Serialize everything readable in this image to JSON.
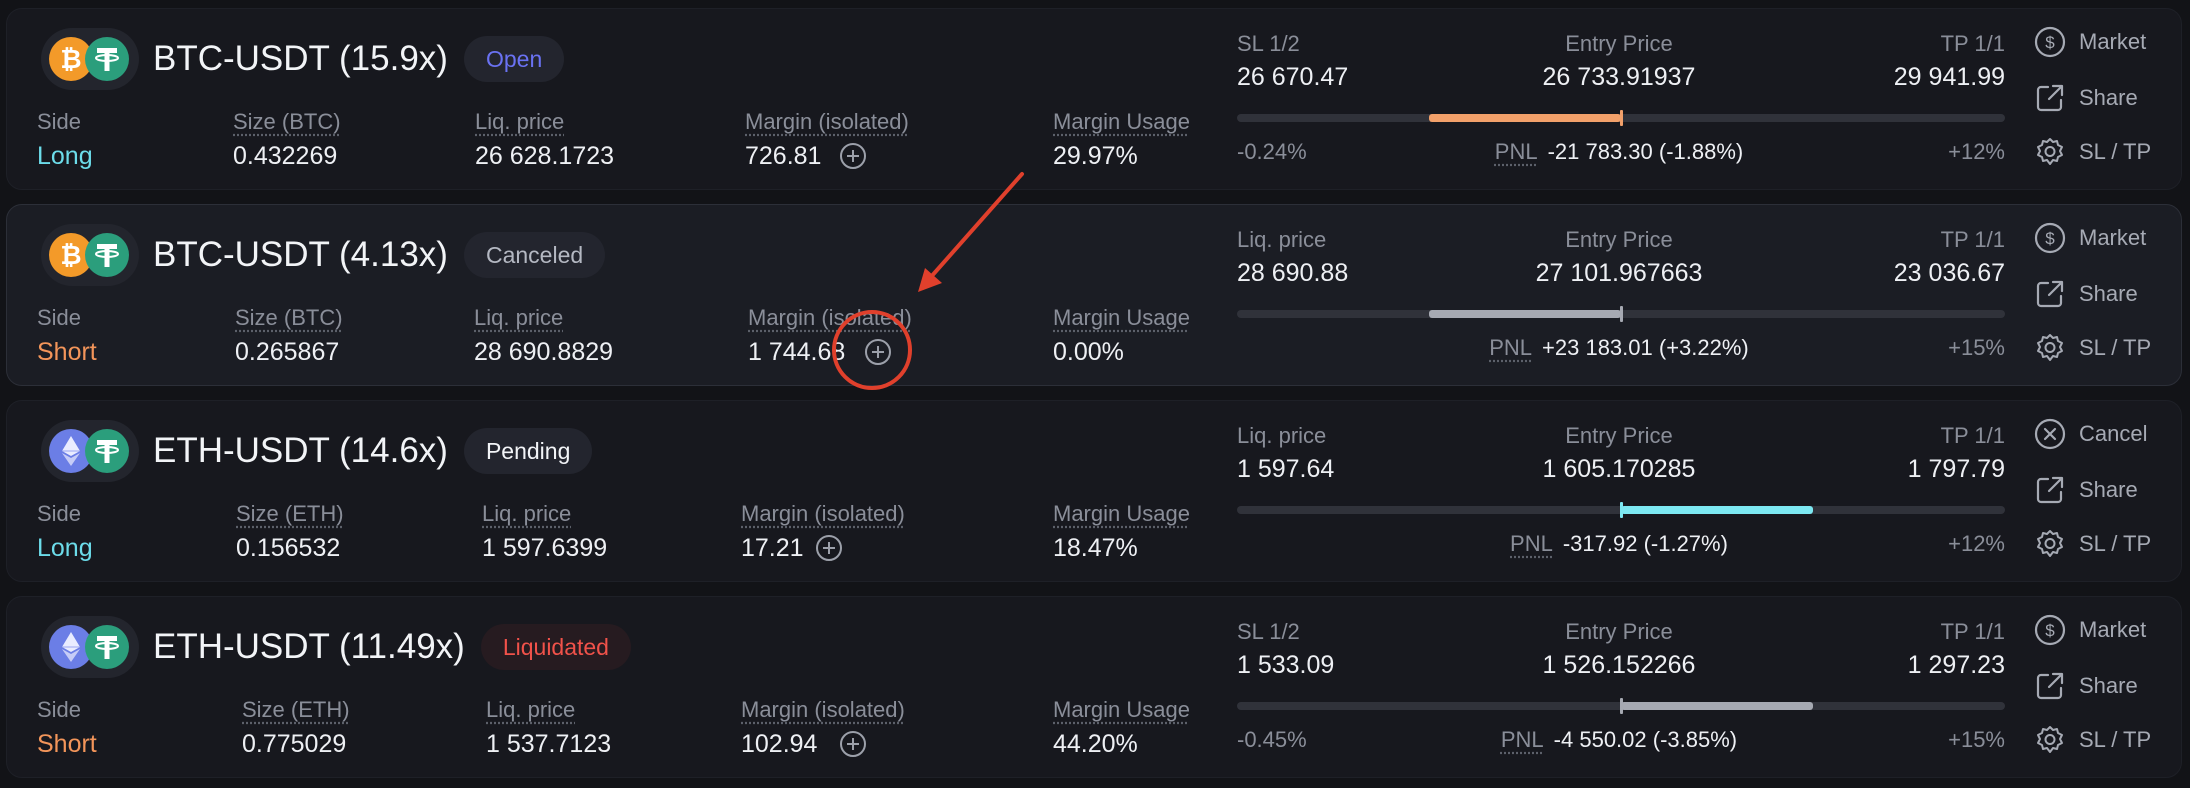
{
  "colors": {
    "long": "#6cdcea",
    "short": "#f3955a",
    "open": "#6a72f2",
    "liquidated": "#f0524a",
    "annotation": "#e0402c"
  },
  "positions": [
    {
      "pair": "BTC-USDT (15.9x)",
      "coin": "btc-icon",
      "quote": "tether-icon",
      "status": "Open",
      "status_class": "open",
      "side_label": "Side",
      "side": "Long",
      "size_label": "Size (BTC)",
      "size": "0.432269",
      "liq_label": "Liq. price",
      "liq": "26 628.1723",
      "margin_label": "Margin (isolated)",
      "margin": "726.81",
      "usage_label": "Margin Usage",
      "usage": "29.97%",
      "left_label": "SL 1/2",
      "left_value": "26 670.47",
      "entry_label": "Entry Price",
      "entry": "26 733.91937",
      "tp_label": "TP 1/1",
      "tp": "29 941.99",
      "low_pct": "-0.24%",
      "high_pct": "+12%",
      "pnl_label": "PNL",
      "pnl": "-21 783.30 (-1.88%)",
      "bar": {
        "start": 0.25,
        "end": 0.5,
        "color": "#f2a06a",
        "tick": "#f2a06a"
      },
      "actions": [
        {
          "label": "Market",
          "icon": "dollar-circle-icon"
        },
        {
          "label": "Share",
          "icon": "share-icon"
        },
        {
          "label": "SL / TP",
          "icon": "gear-icon"
        }
      ]
    },
    {
      "pair": "BTC-USDT (4.13x)",
      "coin": "btc-icon",
      "quote": "tether-icon",
      "status": "Canceled",
      "status_class": "canceled",
      "side_label": "Side",
      "side": "Short",
      "size_label": "Size (BTC)",
      "size": "0.265867",
      "liq_label": "Liq. price",
      "liq": "28 690.8829",
      "margin_label": "Margin (isolated)",
      "margin": "1 744.68",
      "usage_label": "Margin Usage",
      "usage": "0.00%",
      "left_label": "Liq. price",
      "left_value": "28 690.88",
      "entry_label": "Entry Price",
      "entry": "27 101.967663",
      "tp_label": "TP 1/1",
      "tp": "23 036.67",
      "low_pct": "",
      "high_pct": "+15%",
      "pnl_label": "PNL",
      "pnl": "+23 183.01 (+3.22%)",
      "bar": {
        "start": 0.25,
        "end": 0.5,
        "color": "#a6a9b2",
        "tick": "#a6a9b2"
      },
      "actions": [
        {
          "label": "Market",
          "icon": "dollar-circle-icon"
        },
        {
          "label": "Share",
          "icon": "share-icon"
        },
        {
          "label": "SL / TP",
          "icon": "gear-icon"
        }
      ]
    },
    {
      "pair": "ETH-USDT (14.6x)",
      "coin": "eth-icon",
      "quote": "tether-icon",
      "status": "Pending",
      "status_class": "pending",
      "side_label": "Side",
      "side": "Long",
      "size_label": "Size (ETH)",
      "size": "0.156532",
      "liq_label": "Liq. price",
      "liq": "1 597.6399",
      "margin_label": "Margin (isolated)",
      "margin": "17.21",
      "usage_label": "Margin Usage",
      "usage": "18.47%",
      "left_label": "Liq. price",
      "left_value": "1 597.64",
      "entry_label": "Entry Price",
      "entry": "1 605.170285",
      "tp_label": "TP 1/1",
      "tp": "1 797.79",
      "low_pct": "",
      "high_pct": "+12%",
      "pnl_label": "PNL",
      "pnl": "-317.92 (-1.27%)",
      "bar": {
        "start": 0.5,
        "end": 0.75,
        "color": "#7de8f2",
        "tick": "#7de8f2"
      },
      "actions": [
        {
          "label": "Cancel",
          "icon": "cancel-circle-icon"
        },
        {
          "label": "Share",
          "icon": "share-icon"
        },
        {
          "label": "SL / TP",
          "icon": "gear-icon"
        }
      ]
    },
    {
      "pair": "ETH-USDT (11.49x)",
      "coin": "eth-icon",
      "quote": "tether-icon",
      "status": "Liquidated",
      "status_class": "liquidated",
      "side_label": "Side",
      "side": "Short",
      "size_label": "Size (ETH)",
      "size": "0.775029",
      "liq_label": "Liq. price",
      "liq": "1 537.7123",
      "margin_label": "Margin (isolated)",
      "margin": "102.94",
      "usage_label": "Margin Usage",
      "usage": "44.20%",
      "left_label": "SL 1/2",
      "left_value": "1 533.09",
      "entry_label": "Entry Price",
      "entry": "1 526.152266",
      "tp_label": "TP 1/1",
      "tp": "1 297.23",
      "low_pct": "-0.45%",
      "high_pct": "+15%",
      "pnl_label": "PNL",
      "pnl": "-4 550.02 (-3.85%)",
      "bar": {
        "start": 0.5,
        "end": 0.75,
        "color": "#a6a9b2",
        "tick": "#a6a9b2"
      },
      "actions": [
        {
          "label": "Market",
          "icon": "dollar-circle-icon"
        },
        {
          "label": "Share",
          "icon": "share-icon"
        },
        {
          "label": "SL / TP",
          "icon": "gear-icon"
        }
      ]
    }
  ]
}
